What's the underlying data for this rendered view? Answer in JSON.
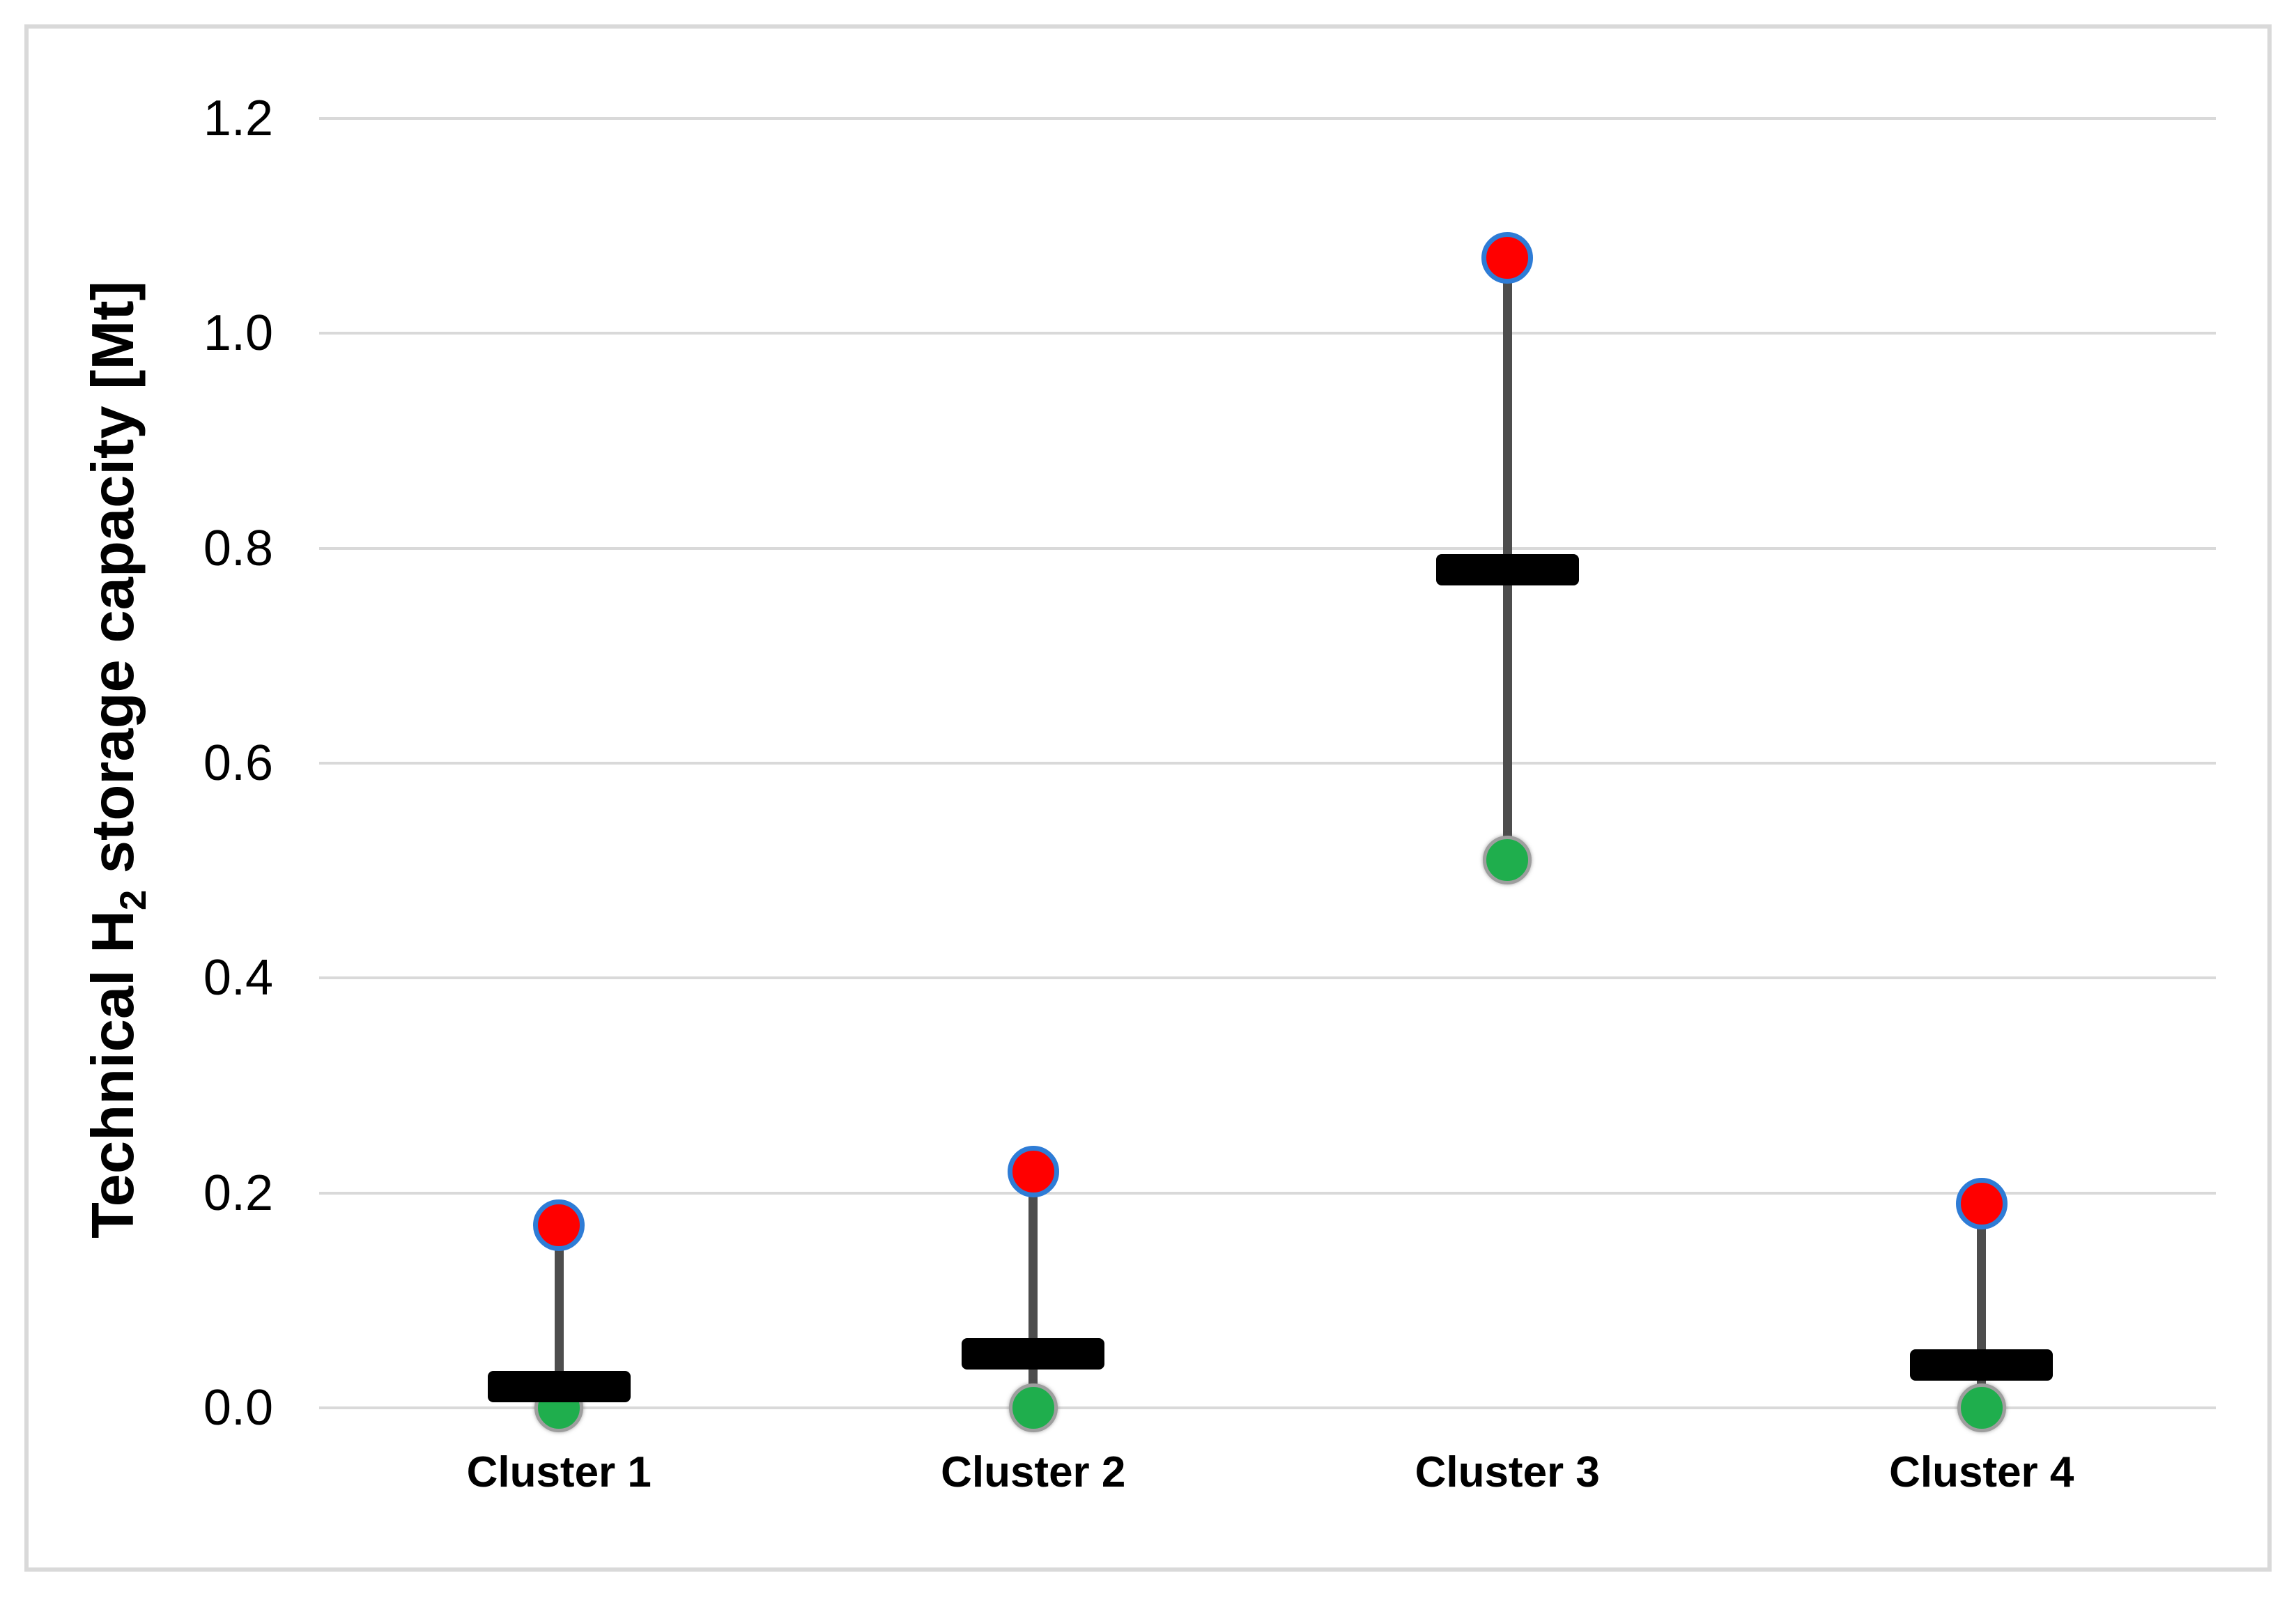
{
  "figure": {
    "kind": "excel-style min-mean-max range chart",
    "background": "#ffffff",
    "frame_border_color": "#d9d9d9",
    "gridline_color": "#d9d9d9"
  },
  "y_axis": {
    "title_pre": "Technical H",
    "title_sub": "2",
    "title_post": " storage capacity [Mt]",
    "tick_labels": [
      "0.0",
      "0.2",
      "0.4",
      "0.6",
      "0.8",
      "1.0",
      "1.2"
    ]
  },
  "chart_data": {
    "type": "scatter",
    "subtype": "min-mean-max vertical range plot (stock-style)",
    "title": "",
    "xlabel": "",
    "ylabel": "Technical H2 storage capacity [Mt]",
    "categories": [
      "Cluster 1",
      "Cluster 2",
      "Cluster 3",
      "Cluster 4"
    ],
    "series": [
      {
        "name": "maximum",
        "marker": "red-circle-blue-outline",
        "fill": "#ff0000",
        "outline": "#2e7cd6",
        "values": [
          0.17,
          0.22,
          1.07,
          0.19
        ]
      },
      {
        "name": "mean",
        "marker": "black-horizontal-bar",
        "fill": "#000000",
        "outline": "#000000",
        "values": [
          0.02,
          0.05,
          0.78,
          0.04
        ]
      },
      {
        "name": "minimum",
        "marker": "green-circle-gray-outline",
        "fill": "#1fae4d",
        "outline": "#9e9e9e",
        "values": [
          0.0,
          0.0,
          0.51,
          0.0
        ]
      }
    ],
    "whisker_color": "#4d4d4d",
    "ylim": [
      0,
      1.2
    ],
    "ytick_step": 0.2,
    "grid": "horizontal-light-gray",
    "legend": "none"
  }
}
